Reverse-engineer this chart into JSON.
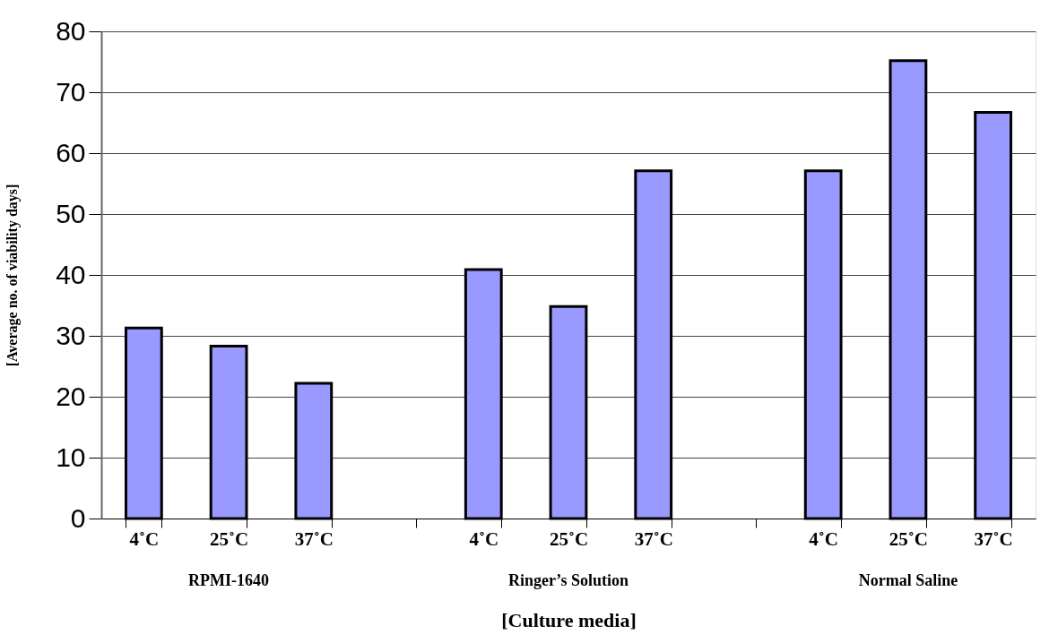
{
  "chart_data": {
    "type": "bar",
    "categories": [
      "4˚C",
      "25˚C",
      "37˚C",
      null,
      "4˚C",
      "25˚C",
      "37˚C",
      null,
      "4˚C",
      "25˚C",
      "37˚C"
    ],
    "values": [
      31.3,
      28.3,
      22.2,
      null,
      40.9,
      34.8,
      57.1,
      null,
      57.1,
      75.2,
      66.7
    ],
    "color": "#9999ff",
    "ylim": [
      0,
      80
    ],
    "yticks": [
      0,
      10,
      20,
      30,
      40,
      50,
      60,
      70,
      80
    ],
    "grid": "y",
    "xlabel": "[Culture media]",
    "ylabel": "[Average no. of viability days]",
    "annotations": [
      "RPMI-1640",
      "Ringer’s Solution",
      "Normal Saline"
    ]
  }
}
